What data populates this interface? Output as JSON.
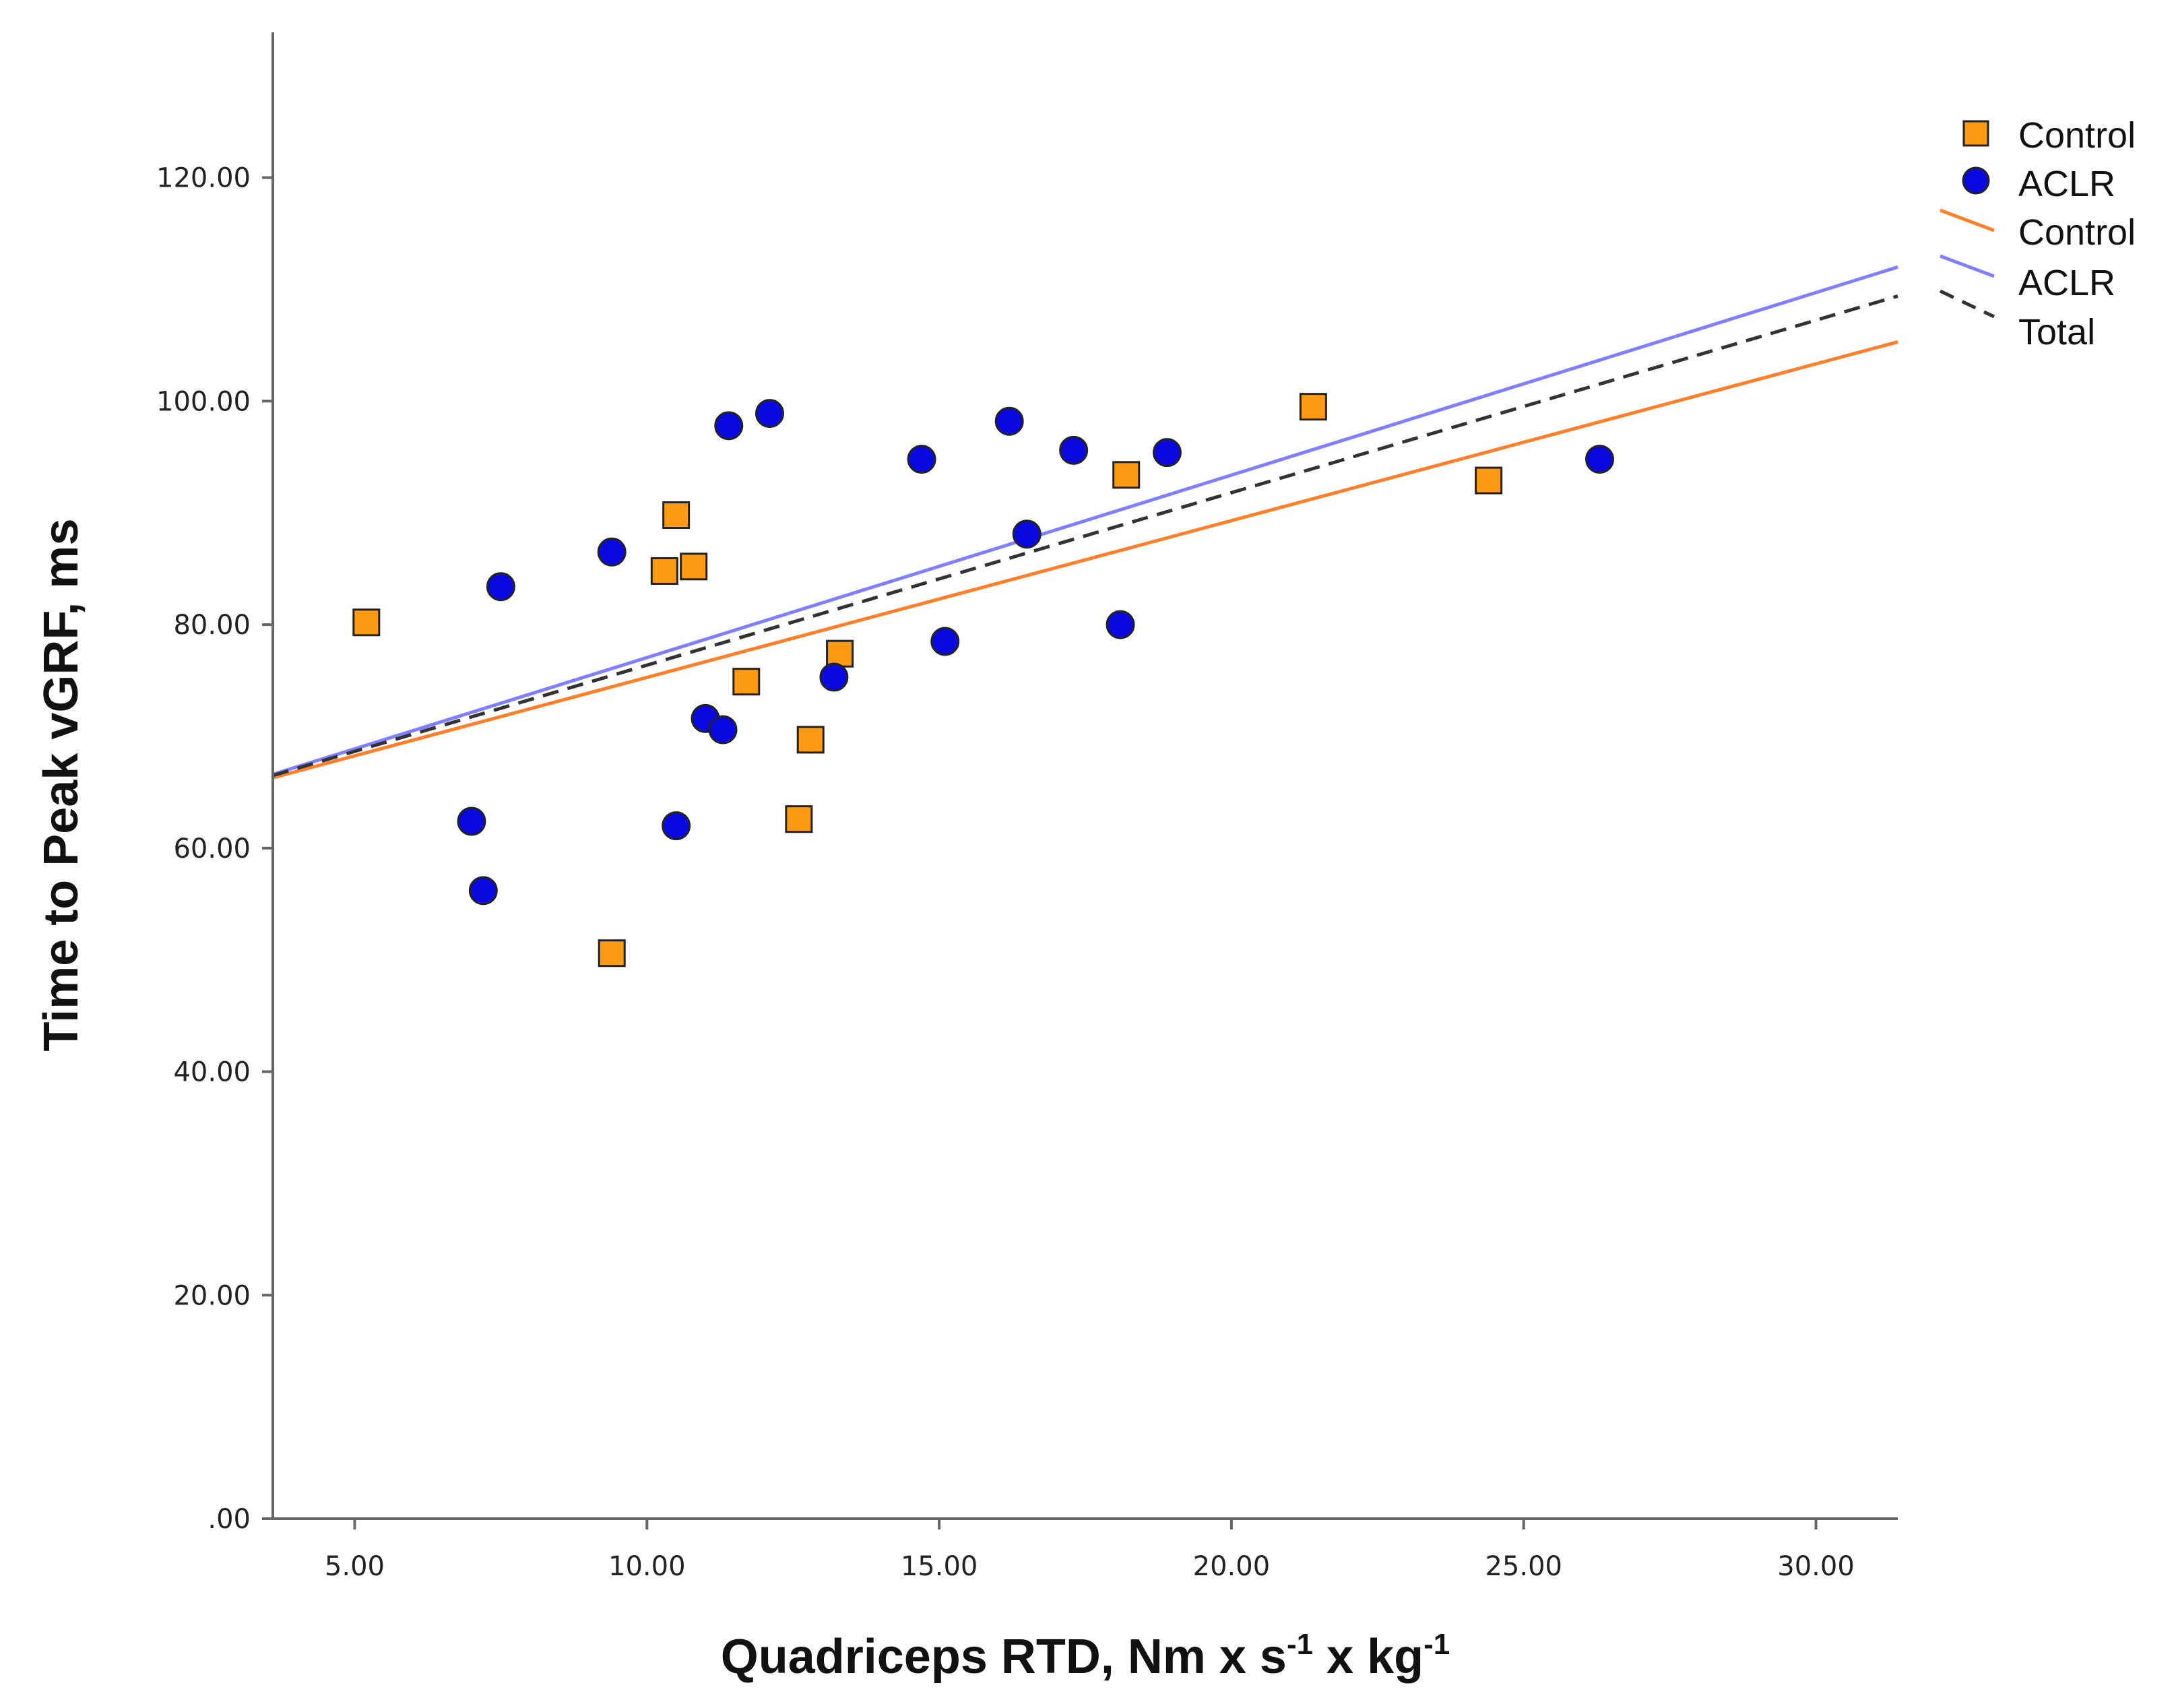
{
  "chart_data": {
    "type": "scatter",
    "xlabel": {
      "base": "Quadriceps RTD, Nm x s",
      "sup1": "-1",
      "mid": " x kg",
      "sup2": "-1"
    },
    "ylabel": "Time to Peak vGRF, ms",
    "xlim": [
      3.6,
      31.4
    ],
    "ylim": [
      0,
      133
    ],
    "x_ticks": [
      "5.00",
      "10.00",
      "15.00",
      "20.00",
      "25.00",
      "30.00"
    ],
    "x_tick_values": [
      5,
      10,
      15,
      20,
      25,
      30
    ],
    "y_ticks": [
      ".00",
      "20.00",
      "40.00",
      "60.00",
      "80.00",
      "100.00",
      "120.00"
    ],
    "y_tick_values": [
      0,
      20,
      40,
      60,
      80,
      100,
      120
    ],
    "grid": false,
    "legend": {
      "placement": "top-right",
      "entries": [
        {
          "label": "Control",
          "kind": "square-marker"
        },
        {
          "label": "ACLR",
          "kind": "circle-marker"
        },
        {
          "label": "Control",
          "kind": "line"
        },
        {
          "label": "ACLR",
          "kind": "line"
        },
        {
          "label": "Total",
          "kind": "dashed-line"
        }
      ]
    },
    "series": [
      {
        "name": "Control",
        "marker": "square",
        "color": "#ff9a14",
        "points": [
          [
            5.2,
            80.2
          ],
          [
            9.4,
            50.6
          ],
          [
            10.3,
            84.8
          ],
          [
            10.5,
            89.8
          ],
          [
            10.8,
            85.2
          ],
          [
            11.7,
            74.9
          ],
          [
            12.6,
            62.6
          ],
          [
            12.8,
            69.7
          ],
          [
            13.3,
            77.4
          ],
          [
            18.2,
            93.4
          ],
          [
            21.4,
            99.5
          ],
          [
            24.4,
            92.9
          ]
        ]
      },
      {
        "name": "ACLR",
        "marker": "circle",
        "color": "#0a0ae0",
        "points": [
          [
            7.0,
            62.4
          ],
          [
            7.2,
            56.2
          ],
          [
            7.5,
            83.4
          ],
          [
            9.4,
            86.5
          ],
          [
            10.5,
            62.0
          ],
          [
            11.0,
            71.6
          ],
          [
            11.3,
            70.6
          ],
          [
            11.4,
            97.8
          ],
          [
            12.1,
            98.9
          ],
          [
            13.2,
            75.3
          ],
          [
            14.7,
            94.8
          ],
          [
            15.1,
            78.5
          ],
          [
            16.2,
            98.2
          ],
          [
            16.5,
            88.1
          ],
          [
            17.3,
            95.6
          ],
          [
            18.1,
            80.0
          ],
          [
            18.9,
            95.4
          ],
          [
            26.3,
            94.8
          ]
        ]
      }
    ],
    "fit_lines": [
      {
        "name": "Control",
        "color": "#ff7f2a",
        "dashed": false,
        "from": [
          3.6,
          66.3
        ],
        "to": [
          31.4,
          105.3
        ]
      },
      {
        "name": "ACLR",
        "color": "#8080ff",
        "dashed": false,
        "from": [
          3.6,
          66.6
        ],
        "to": [
          31.4,
          112.0
        ]
      },
      {
        "name": "Total",
        "color": "#333333",
        "dashed": true,
        "from": [
          3.6,
          66.5
        ],
        "to": [
          31.4,
          109.4
        ]
      }
    ]
  }
}
